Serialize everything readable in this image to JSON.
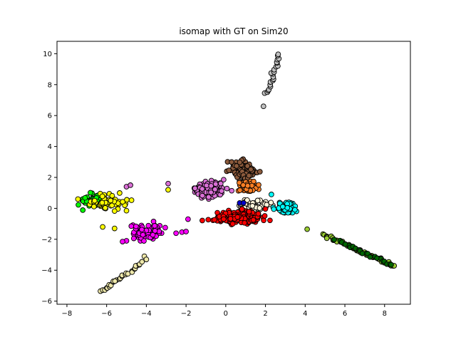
{
  "chart_data": {
    "type": "scatter",
    "title": "isomap with GT on Sim20",
    "xlabel": "",
    "ylabel": "",
    "xlim": [
      -8.5,
      9.3
    ],
    "ylim": [
      -6.2,
      10.8
    ],
    "xticks": [
      -8,
      -6,
      -4,
      -2,
      0,
      2,
      4,
      6,
      8
    ],
    "yticks": [
      -6,
      -4,
      -2,
      0,
      2,
      4,
      6,
      8,
      10
    ],
    "grid": false,
    "legend": "none",
    "marker_edge_color": "#000000",
    "series": [
      {
        "color": "#c0c0c0",
        "shape": "line",
        "from": [
          2.1,
          7.4
        ],
        "to": [
          2.7,
          10.0
        ],
        "count": 22,
        "extra": [
          [
            1.9,
            6.6
          ]
        ]
      },
      {
        "color": "#9acd32",
        "shape": "line",
        "from": [
          4.9,
          -1.7
        ],
        "to": [
          8.5,
          -3.75
        ],
        "count": 50,
        "extra": [
          [
            4.1,
            -1.35
          ]
        ]
      },
      {
        "color": "#006400",
        "shape": "line",
        "from": [
          5.6,
          -2.05
        ],
        "to": [
          8.4,
          -3.7
        ],
        "count": 22
      },
      {
        "color": "#eee8aa",
        "shape": "line",
        "from": [
          -6.3,
          -5.4
        ],
        "to": [
          -4.2,
          -3.5
        ],
        "count": 28,
        "extra": [
          [
            -4.1,
            -3.1
          ],
          [
            -4.0,
            -3.3
          ]
        ]
      },
      {
        "color": "#ff00ff",
        "shape": "blob",
        "center": [
          -3.8,
          -1.5
        ],
        "spread": [
          0.9,
          0.45
        ],
        "count": 70,
        "extra": [
          [
            -5.0,
            -2.1
          ],
          [
            -5.2,
            -2.15
          ],
          [
            -1.9,
            -0.7
          ],
          [
            -2.0,
            -1.5
          ]
        ]
      },
      {
        "color": "#00ff00",
        "shape": "blob",
        "center": [
          -6.7,
          0.5
        ],
        "spread": [
          0.6,
          0.3
        ],
        "count": 60
      },
      {
        "color": "#ffff00",
        "shape": "blob",
        "center": [
          -5.8,
          0.4
        ],
        "spread": [
          0.8,
          0.4
        ],
        "count": 60,
        "extra": [
          [
            -6.2,
            -1.2
          ],
          [
            -5.6,
            -1.3
          ],
          [
            -5.0,
            -0.15
          ],
          [
            -2.9,
            1.2
          ]
        ]
      },
      {
        "color": "#da70d6",
        "shape": "blob",
        "center": [
          -0.8,
          1.15
        ],
        "spread": [
          0.7,
          0.5
        ],
        "count": 110,
        "extra": [
          [
            -5.0,
            1.4
          ],
          [
            -4.8,
            1.5
          ],
          [
            -2.9,
            1.6
          ]
        ]
      },
      {
        "color": "#8b5a3c",
        "shape": "blob",
        "center": [
          0.9,
          2.5
        ],
        "spread": [
          0.55,
          0.55
        ],
        "count": 110
      },
      {
        "color": "#ff7f24",
        "shape": "blob",
        "center": [
          1.1,
          1.35
        ],
        "spread": [
          0.5,
          0.35
        ],
        "count": 50
      },
      {
        "color": "#fff5dc",
        "shape": "blob",
        "center": [
          1.5,
          0.2
        ],
        "spread": [
          0.8,
          0.35
        ],
        "count": 50
      },
      {
        "color": "#00ffff",
        "shape": "blob",
        "center": [
          3.0,
          0.05
        ],
        "spread": [
          0.45,
          0.3
        ],
        "count": 70,
        "extra": [
          [
            2.3,
            0.9
          ]
        ]
      },
      {
        "color": "#ff0000",
        "shape": "blob",
        "center": [
          0.7,
          -0.6
        ],
        "spread": [
          1.1,
          0.4
        ],
        "count": 160
      },
      {
        "color": "#0000cd",
        "shape": "points",
        "points": [
          [
            0.7,
            0.35
          ],
          [
            0.9,
            0.35
          ]
        ]
      }
    ]
  }
}
